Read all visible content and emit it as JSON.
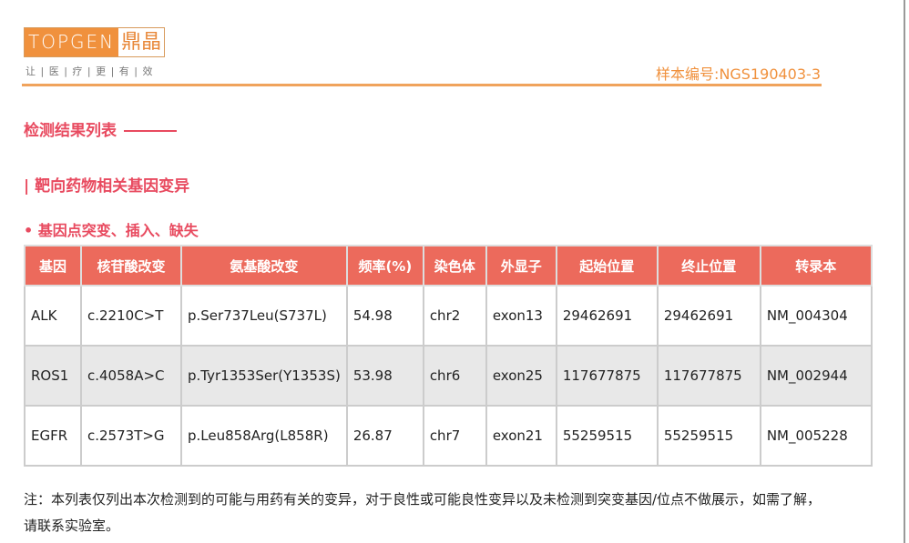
{
  "header": {
    "logo_en": "TOPGEN",
    "logo_cn": "鼎晶",
    "slogan": "让 | 医 | 疗 | 更 | 有 | 效",
    "sample_id": "样本编号:NGS190403-3"
  },
  "section_title": "检测结果列表",
  "subsection_title": "| 靶向药物相关基因变异",
  "sub_subsection_title": "• 基因点突变、插入、缺失",
  "table": {
    "columns": [
      "基因",
      "核苷酸改变",
      "氨基酸改变",
      "频率(%)",
      "染色体",
      "外显子",
      "起始位置",
      "终止位置",
      "转录本"
    ],
    "rows": [
      [
        "ALK",
        "c.2210C>T",
        "p.Ser737Leu(S737L)",
        "54.98",
        "chr2",
        "exon13",
        "29462691",
        "29462691",
        "NM_004304"
      ],
      [
        "ROS1",
        "c.4058A>C",
        "p.Tyr1353Ser(Y1353S)",
        "53.98",
        "chr6",
        "exon25",
        "117677875",
        "117677875",
        "NM_002944"
      ],
      [
        "EGFR",
        "c.2573T>G",
        "p.Leu858Arg(L858R)",
        "26.87",
        "chr7",
        "exon21",
        "55259515",
        "55259515",
        "NM_005228"
      ]
    ]
  },
  "note": "注：本列表仅列出本次检测到的可能与用药有关的变异，对于良性或可能良性变异以及未检测到突变基因/位点不做展示，如需了解，请联系实验室。"
}
